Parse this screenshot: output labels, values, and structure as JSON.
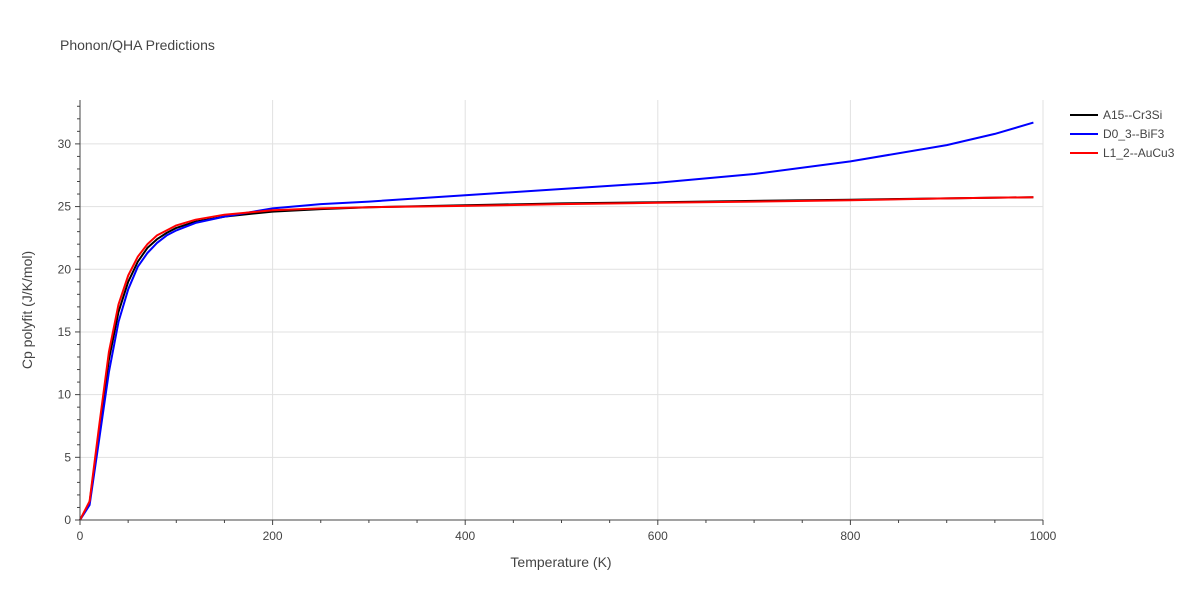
{
  "chart_data": {
    "type": "line",
    "title": "Phonon/QHA Predictions",
    "xlabel": "Temperature (K)",
    "ylabel": "Cp polyfit (J/K/mol)",
    "xlim": [
      0,
      1000
    ],
    "ylim": [
      0,
      33.5
    ],
    "x_ticks": [
      0,
      200,
      400,
      600,
      800,
      1000
    ],
    "y_ticks": [
      0,
      5,
      10,
      15,
      20,
      25,
      30
    ],
    "x_tick_labels": [
      "0",
      "200",
      "400",
      "600",
      "800",
      "1000"
    ],
    "y_tick_labels": [
      "0",
      "5",
      "10",
      "15",
      "20",
      "25",
      "30"
    ],
    "grid": true,
    "legend_position": "top-right",
    "series": [
      {
        "name": "A15--Cr3Si",
        "color": "#000000",
        "x": [
          0,
          10,
          20,
          30,
          40,
          50,
          60,
          70,
          80,
          90,
          100,
          120,
          150,
          200,
          250,
          300,
          400,
          500,
          600,
          700,
          800,
          900,
          990
        ],
        "y": [
          0,
          1.4,
          7.2,
          12.8,
          16.6,
          19.0,
          20.6,
          21.7,
          22.4,
          22.9,
          23.3,
          23.8,
          24.2,
          24.6,
          24.8,
          24.95,
          25.1,
          25.25,
          25.35,
          25.45,
          25.55,
          25.65,
          25.75
        ]
      },
      {
        "name": "D0_3--BiF3",
        "color": "#0000ff",
        "x": [
          0,
          10,
          20,
          30,
          40,
          50,
          60,
          70,
          80,
          90,
          100,
          120,
          150,
          200,
          250,
          300,
          400,
          500,
          600,
          700,
          800,
          900,
          950,
          990
        ],
        "y": [
          0,
          1.2,
          6.5,
          11.8,
          15.8,
          18.4,
          20.2,
          21.3,
          22.1,
          22.7,
          23.1,
          23.7,
          24.2,
          24.85,
          25.2,
          25.4,
          25.9,
          26.4,
          26.9,
          27.6,
          28.6,
          29.9,
          30.8,
          31.7
        ]
      },
      {
        "name": "L1_2--AuCu3",
        "color": "#ff0000",
        "x": [
          0,
          10,
          20,
          30,
          40,
          50,
          60,
          70,
          80,
          90,
          100,
          120,
          150,
          200,
          250,
          300,
          400,
          500,
          600,
          700,
          800,
          900,
          990
        ],
        "y": [
          0,
          1.5,
          7.6,
          13.4,
          17.2,
          19.5,
          21.0,
          22.0,
          22.7,
          23.1,
          23.5,
          23.95,
          24.35,
          24.7,
          24.85,
          24.95,
          25.05,
          25.2,
          25.3,
          25.4,
          25.5,
          25.65,
          25.75
        ]
      }
    ]
  }
}
